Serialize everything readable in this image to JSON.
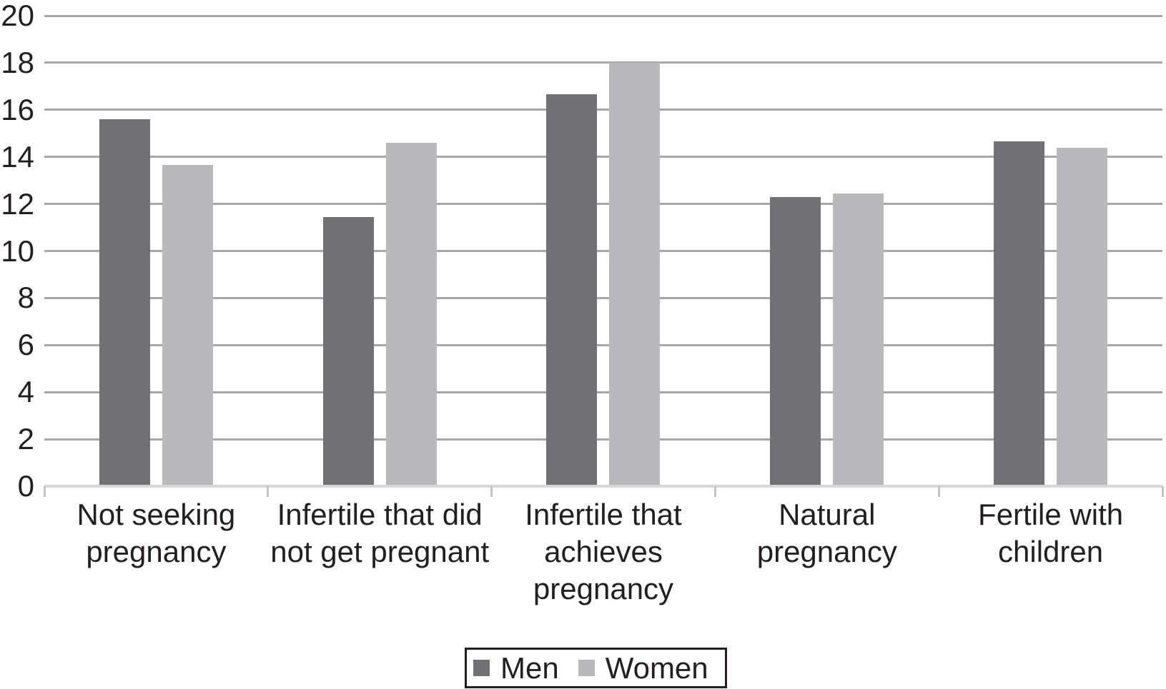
{
  "chart_data": {
    "type": "bar",
    "title": "",
    "xlabel": "",
    "ylabel": "",
    "categories": [
      "Not seeking pregnancy",
      "Infertile that did not get pregnant",
      "Infertile that achieves pregnancy",
      "Natural pregnancy",
      "Fertile with children"
    ],
    "category_label_lines": [
      [
        "Not seeking",
        "pregnancy"
      ],
      [
        "Infertile that did",
        "not get pregnant"
      ],
      [
        "Infertile that",
        "achieves",
        "pregnancy"
      ],
      [
        "Natural",
        "pregnancy"
      ],
      [
        "Fertile with",
        "children"
      ]
    ],
    "series": [
      {
        "name": "Men",
        "color": "#717175",
        "values": [
          15.6,
          11.45,
          16.65,
          12.3,
          14.65
        ]
      },
      {
        "name": "Women",
        "color": "#b9b9bb",
        "values": [
          13.65,
          14.6,
          18.0,
          12.45,
          14.4
        ]
      }
    ],
    "ylim": [
      0,
      20
    ],
    "yticks": [
      0,
      2,
      4,
      6,
      8,
      10,
      12,
      14,
      16,
      18,
      20
    ],
    "grid": true,
    "legend_position": "bottom",
    "colors": {
      "gridline": "#a7a7a7",
      "axis_line": "#d6d6d6",
      "tick_mark": "#c4c4c4",
      "text": "#231f20",
      "legend_border": "#231f20",
      "background": "#ffffff"
    }
  }
}
